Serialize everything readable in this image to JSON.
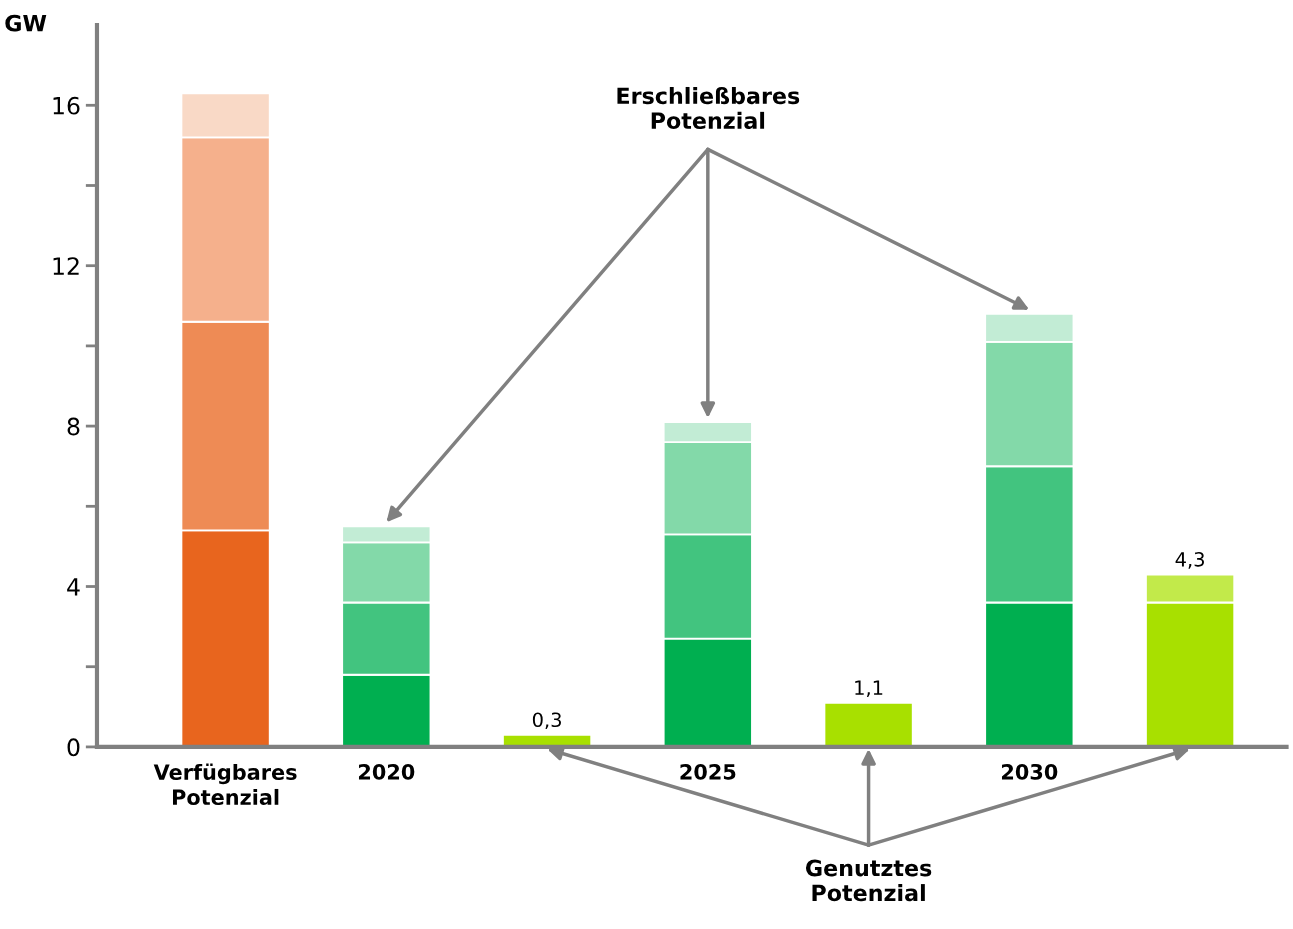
{
  "chart_data": {
    "type": "bar",
    "stacked": true,
    "ylabel": "GW",
    "categories": [
      "Verfügbares\nPotenzial",
      "2020",
      null,
      "2025",
      null,
      "2030",
      null
    ],
    "series": [
      {
        "colors": [
          "#e8651e",
          "#00af50",
          "#a8e000",
          "#00af50",
          "#a8e000",
          "#00af50",
          "#a8e000"
        ],
        "values": [
          5.4,
          1.8,
          0.3,
          2.7,
          1.1,
          3.6,
          3.6
        ]
      },
      {
        "colors": [
          "#ee8b55",
          "#42c47f",
          null,
          "#42c47f",
          null,
          "#42c47f",
          "#c2ea4a"
        ],
        "values": [
          5.2,
          1.8,
          null,
          2.6,
          null,
          3.4,
          0.7
        ]
      },
      {
        "colors": [
          "#f5b08c",
          "#83d9a9",
          null,
          "#83d9a9",
          null,
          "#83d9a9",
          null
        ],
        "values": [
          4.6,
          1.5,
          null,
          2.3,
          null,
          3.1,
          null
        ]
      },
      {
        "colors": [
          "#f9d9c6",
          "#c2ecd5",
          null,
          "#c2ecd5",
          null,
          "#c2ecd5",
          null
        ],
        "values": [
          1.1,
          0.4,
          null,
          0.5,
          null,
          0.7,
          null
        ]
      }
    ],
    "totals": [
      null,
      null,
      "0,3",
      null,
      "1,1",
      null,
      "4,3"
    ],
    "ylim": [
      0,
      18
    ],
    "yticks": [
      0,
      {
        "value": 2,
        "label": null
      },
      4,
      {
        "value": 6,
        "label": null
      },
      8,
      {
        "value": 10,
        "label": null
      },
      12,
      {
        "value": 14,
        "label": null
      },
      16
    ],
    "annotations": [
      "Erschließbares\nPotenzial",
      "Genutztes\nPotenzial"
    ],
    "grid": false,
    "legend": false
  }
}
